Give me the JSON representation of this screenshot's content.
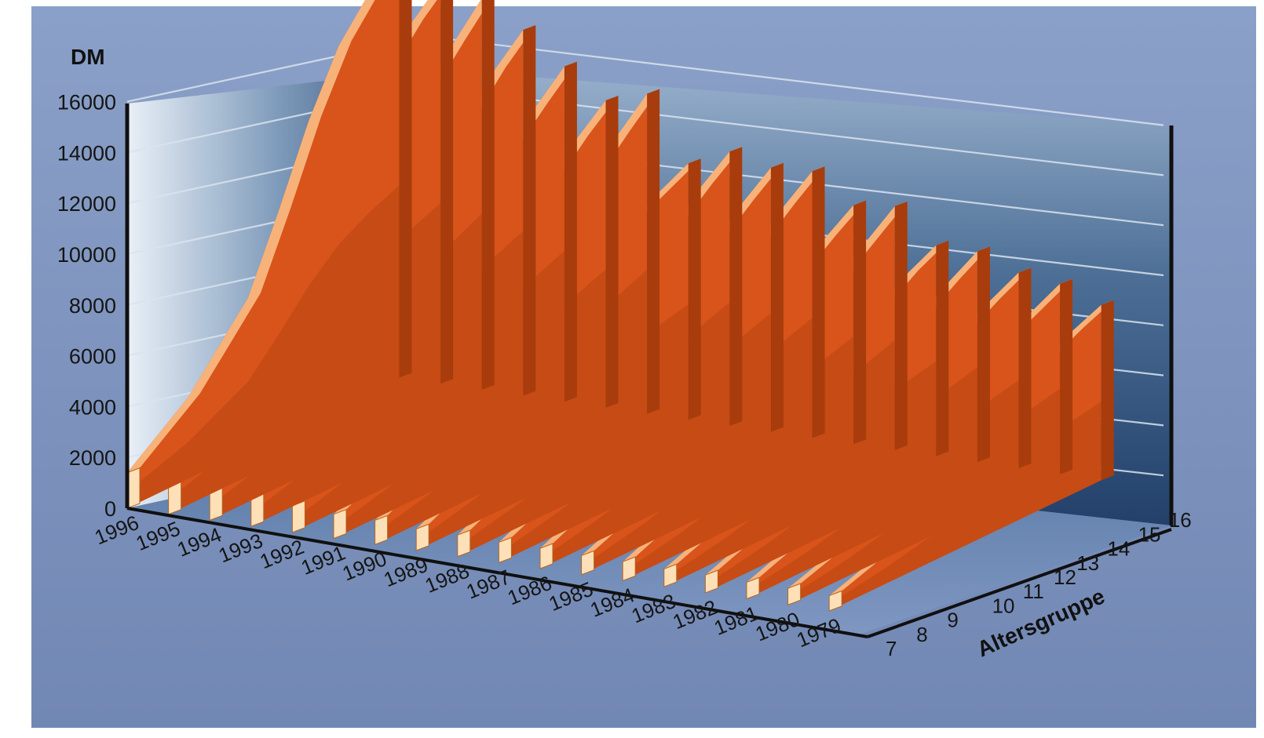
{
  "chart_data": {
    "type": "area",
    "subtype": "3d-ribbon",
    "y_axis_title": "DM",
    "z_axis_title": "Altersgruppe",
    "ylim": [
      0,
      16000
    ],
    "y_ticks": [
      0,
      2000,
      4000,
      6000,
      8000,
      10000,
      12000,
      14000,
      16000
    ],
    "x_label_unit": "",
    "age_groups": [
      "7",
      "8",
      "9",
      "10",
      "11",
      "12",
      "13",
      "14",
      "15",
      "16"
    ],
    "series": [
      {
        "name": "1996",
        "values": [
          1400,
          2300,
          3200,
          4600,
          6000,
          8800,
          11800,
          14200,
          15700,
          16800
        ]
      },
      {
        "name": "1995",
        "values": [
          1300,
          2100,
          3000,
          4300,
          5600,
          8200,
          11000,
          13300,
          14700,
          15800
        ]
      },
      {
        "name": "1994",
        "values": [
          1200,
          2000,
          2900,
          4100,
          5300,
          7800,
          10500,
          12700,
          14100,
          15400
        ]
      },
      {
        "name": "1993",
        "values": [
          1150,
          1900,
          2700,
          3900,
          5000,
          7300,
          9800,
          11900,
          13300,
          14400
        ]
      },
      {
        "name": "1992",
        "values": [
          1050,
          1750,
          2500,
          3600,
          4600,
          6700,
          9000,
          10900,
          12100,
          13200
        ]
      },
      {
        "name": "1991",
        "values": [
          950,
          1600,
          2300,
          3300,
          4200,
          6100,
          8200,
          9900,
          11100,
          12100
        ]
      },
      {
        "name": "1990",
        "values": [
          950,
          1600,
          2300,
          3300,
          4300,
          6300,
          8400,
          10300,
          11500,
          12600
        ]
      },
      {
        "name": "1989",
        "values": [
          850,
          1450,
          2100,
          3000,
          3800,
          5500,
          7400,
          8900,
          9500,
          10100
        ]
      },
      {
        "name": "1988",
        "values": [
          850,
          1450,
          2050,
          2950,
          3800,
          5500,
          7300,
          8900,
          9900,
          10800
        ]
      },
      {
        "name": "1987",
        "values": [
          800,
          1350,
          1950,
          2800,
          3600,
          5200,
          7000,
          8500,
          9500,
          10400
        ]
      },
      {
        "name": "1986",
        "values": [
          800,
          1350,
          1950,
          2800,
          3600,
          5300,
          7100,
          8600,
          9600,
          10500
        ]
      },
      {
        "name": "1985",
        "values": [
          750,
          1250,
          1800,
          2550,
          3300,
          4700,
          6300,
          7700,
          8600,
          9400
        ]
      },
      {
        "name": "1984",
        "values": [
          750,
          1250,
          1800,
          2550,
          3300,
          4800,
          6400,
          7800,
          8700,
          9600
        ]
      },
      {
        "name": "1983",
        "values": [
          700,
          1150,
          1650,
          2350,
          3000,
          4300,
          5700,
          6900,
          7700,
          8300
        ]
      },
      {
        "name": "1982",
        "values": [
          700,
          1150,
          1650,
          2350,
          3000,
          4300,
          5700,
          6800,
          7600,
          8300
        ]
      },
      {
        "name": "1981",
        "values": [
          650,
          1100,
          1550,
          2200,
          2800,
          4000,
          5300,
          6400,
          7100,
          7700
        ]
      },
      {
        "name": "1980",
        "values": [
          650,
          1050,
          1500,
          2150,
          2750,
          3900,
          5200,
          6300,
          6900,
          7500
        ]
      },
      {
        "name": "1979",
        "values": [
          600,
          1000,
          1450,
          2050,
          2600,
          3700,
          4900,
          5800,
          6400,
          6900
        ]
      }
    ],
    "colors": {
      "ribbon_top": "#f7b27a",
      "ribbon_top_light": "#fcd1a3",
      "ribbon_side": "#d8541a",
      "ribbon_side_dark": "#a83c0c",
      "ribbon_end": "#fde0b8",
      "background": "#7d93bd",
      "back_wall_dark": "#2a4870",
      "grid": "#d9e3ef"
    },
    "grid": true,
    "legend": "none"
  }
}
